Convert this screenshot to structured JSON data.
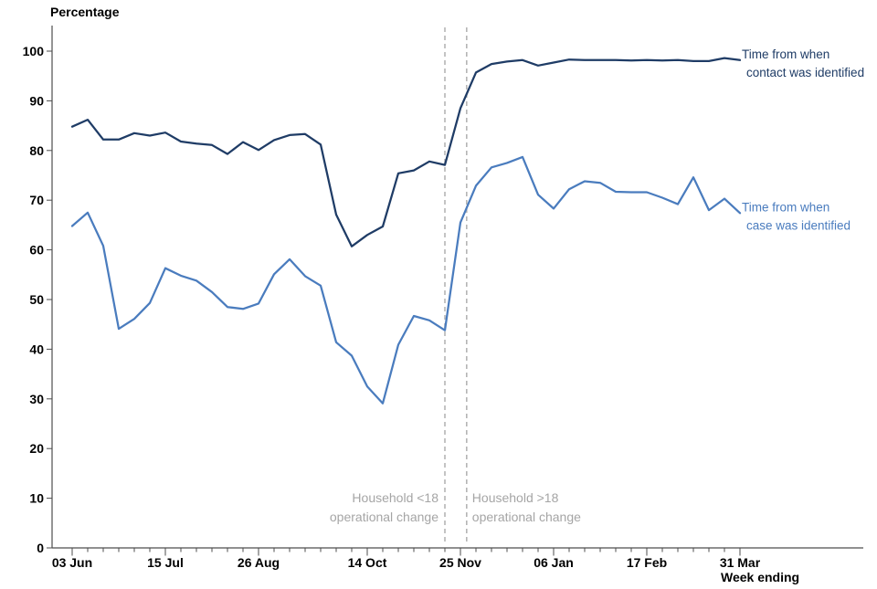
{
  "chart_data": {
    "type": "line",
    "title": "Percentage",
    "x_axis_label": "Week ending",
    "ylim": [
      0,
      100
    ],
    "y_ticks": [
      0,
      10,
      20,
      30,
      40,
      50,
      60,
      70,
      80,
      90,
      100
    ],
    "grid": "off",
    "legend_position": "line-end-annotations",
    "x_tick_labels": [
      {
        "week": 0,
        "label": "03 Jun"
      },
      {
        "week": 6,
        "label": "15 Jul"
      },
      {
        "week": 12,
        "label": "26 Aug"
      },
      {
        "week": 19,
        "label": "14 Oct"
      },
      {
        "week": 25,
        "label": "25 Nov"
      },
      {
        "week": 31,
        "label": "06 Jan"
      },
      {
        "week": 37,
        "label": "17 Feb"
      },
      {
        "week": 43,
        "label": "31 Mar"
      }
    ],
    "series": [
      {
        "id": "contact",
        "label_line1": "Time from when",
        "label_line2": "contact was identified",
        "color": "#1f3c66",
        "values": [
          84.8,
          86.2,
          82.2,
          82.2,
          83.5,
          83.0,
          83.6,
          81.8,
          81.4,
          81.1,
          79.3,
          81.7,
          80.1,
          82.1,
          83.1,
          83.3,
          81.2,
          67.1,
          60.7,
          63.0,
          64.7,
          75.4,
          76.0,
          77.8,
          77.1,
          88.5,
          95.7,
          97.4,
          97.9,
          98.2,
          97.1,
          97.7,
          98.3,
          98.2,
          98.2,
          98.2,
          98.1,
          98.2,
          98.1,
          98.2,
          98.0,
          98.0,
          98.6,
          98.2
        ]
      },
      {
        "id": "case",
        "label_line1": "Time from when",
        "label_line2": "case was identified",
        "color": "#4a7cbe",
        "values": [
          64.8,
          67.5,
          60.8,
          44.1,
          46.1,
          49.3,
          56.3,
          54.8,
          53.8,
          51.5,
          48.5,
          48.1,
          49.2,
          55.1,
          58.1,
          54.7,
          52.8,
          41.4,
          38.7,
          32.5,
          29.1,
          40.9,
          46.7,
          45.8,
          43.8,
          65.5,
          72.9,
          76.6,
          77.5,
          78.7,
          71.1,
          68.3,
          72.2,
          73.8,
          73.5,
          71.7,
          71.6,
          71.6,
          70.5,
          69.2,
          74.6,
          68.0,
          70.3,
          67.4
        ]
      }
    ],
    "event_lines": [
      {
        "week": 24.0,
        "side": "left",
        "label_line1": "Household <18",
        "label_line2": "operational change"
      },
      {
        "week": 25.4,
        "side": "right",
        "label_line1": "Household >18",
        "label_line2": "operational change"
      }
    ],
    "colors": {
      "event_line": "#b5b5b5",
      "event_text": "#a5a5a5",
      "axis": "#4d4d4d",
      "label_text": "#000000"
    }
  }
}
